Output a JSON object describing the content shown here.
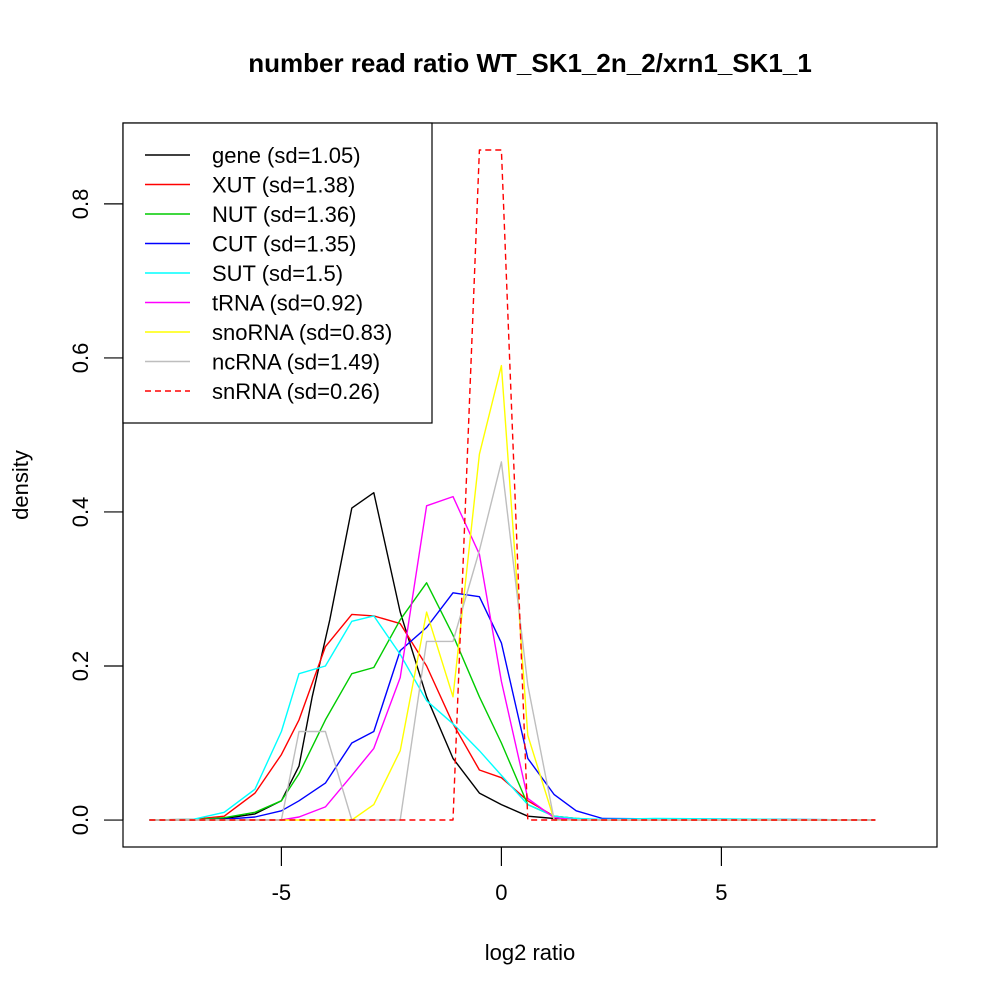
{
  "chart_data": {
    "type": "line",
    "title": "number read ratio WT_SK1_2n_2/xrn1_SK1_1",
    "xlabel": "log2 ratio",
    "ylabel": "density",
    "xlim": [
      -8.6,
      9.9
    ],
    "ylim": [
      -0.035,
      0.905
    ],
    "xticks": [
      -5,
      0,
      5
    ],
    "xtick_labels": [
      "-5",
      "0",
      "5"
    ],
    "yticks": [
      0.0,
      0.2,
      0.4,
      0.6,
      0.8
    ],
    "ytick_labels": [
      "0.0",
      "0.2",
      "0.4",
      "0.6",
      "0.8"
    ],
    "grid": false,
    "legend_position": "top-left",
    "series": [
      {
        "name": "gene (sd=1.05)",
        "color": "#000000",
        "dash": false,
        "x": [
          -8.0,
          -7.0,
          -6.3,
          -5.6,
          -5.0,
          -4.6,
          -4.3,
          -3.9,
          -3.4,
          -2.9,
          -2.3,
          -1.7,
          -1.1,
          -0.5,
          0.0,
          0.6,
          1.2,
          1.7,
          2.3,
          8.5
        ],
        "y": [
          0.0,
          0.0,
          0.002,
          0.008,
          0.025,
          0.07,
          0.16,
          0.26,
          0.405,
          0.425,
          0.27,
          0.16,
          0.08,
          0.035,
          0.02,
          0.005,
          0.002,
          0.0,
          0.0,
          0.0
        ]
      },
      {
        "name": "XUT (sd=1.38)",
        "color": "#ff0000",
        "dash": false,
        "x": [
          -8.0,
          -7.0,
          -6.3,
          -5.6,
          -5.0,
          -4.6,
          -4.0,
          -3.4,
          -2.9,
          -2.3,
          -1.7,
          -1.1,
          -0.5,
          0.0,
          0.6,
          1.2,
          1.7,
          2.3,
          8.5
        ],
        "y": [
          0.0,
          0.001,
          0.005,
          0.035,
          0.085,
          0.13,
          0.225,
          0.267,
          0.265,
          0.255,
          0.2,
          0.125,
          0.065,
          0.055,
          0.025,
          0.005,
          0.002,
          0.0,
          0.0
        ]
      },
      {
        "name": "NUT (sd=1.36)",
        "color": "#00cc00",
        "dash": false,
        "x": [
          -8.0,
          -7.0,
          -6.3,
          -5.6,
          -5.0,
          -4.6,
          -4.0,
          -3.4,
          -2.9,
          -2.3,
          -1.7,
          -1.1,
          -0.5,
          0.0,
          0.6,
          1.2,
          1.7,
          2.3,
          8.5
        ],
        "y": [
          0.0,
          0.0,
          0.003,
          0.01,
          0.025,
          0.06,
          0.13,
          0.19,
          0.198,
          0.26,
          0.308,
          0.24,
          0.16,
          0.1,
          0.02,
          0.005,
          0.002,
          0.0,
          0.0
        ]
      },
      {
        "name": "CUT (sd=1.35)",
        "color": "#0000ff",
        "dash": false,
        "x": [
          -8.0,
          -7.0,
          -6.3,
          -5.6,
          -5.0,
          -4.6,
          -4.0,
          -3.4,
          -2.9,
          -2.3,
          -1.7,
          -1.1,
          -0.5,
          0.0,
          0.6,
          1.2,
          1.7,
          2.3,
          8.5
        ],
        "y": [
          0.0,
          0.0,
          0.001,
          0.004,
          0.012,
          0.025,
          0.048,
          0.1,
          0.115,
          0.22,
          0.25,
          0.295,
          0.29,
          0.23,
          0.08,
          0.033,
          0.012,
          0.002,
          0.0
        ]
      },
      {
        "name": "SUT (sd=1.5)",
        "color": "#00ffff",
        "dash": false,
        "x": [
          -8.0,
          -7.0,
          -6.3,
          -5.6,
          -5.0,
          -4.6,
          -4.0,
          -3.4,
          -2.9,
          -2.3,
          -1.7,
          -1.1,
          -0.5,
          0.0,
          0.6,
          1.2,
          1.7,
          2.3,
          3.5,
          8.5
        ],
        "y": [
          0.0,
          0.001,
          0.01,
          0.04,
          0.115,
          0.19,
          0.2,
          0.258,
          0.265,
          0.215,
          0.155,
          0.125,
          0.09,
          0.058,
          0.02,
          0.005,
          0.002,
          0.001,
          0.002,
          0.0
        ]
      },
      {
        "name": "tRNA (sd=0.92)",
        "color": "#ff00ff",
        "dash": false,
        "x": [
          -8.0,
          -5.0,
          -4.6,
          -4.0,
          -3.4,
          -2.9,
          -2.3,
          -1.7,
          -1.1,
          -0.5,
          0.0,
          0.6,
          1.2,
          1.7,
          8.5
        ],
        "y": [
          0.0,
          0.0,
          0.004,
          0.017,
          0.058,
          0.093,
          0.185,
          0.408,
          0.42,
          0.345,
          0.18,
          0.028,
          0.003,
          0.0,
          0.0
        ]
      },
      {
        "name": "snoRNA (sd=0.83)",
        "color": "#ffff00",
        "dash": false,
        "x": [
          -8.0,
          -3.4,
          -2.9,
          -2.3,
          -1.7,
          -1.1,
          -0.5,
          0.0,
          0.6,
          1.2,
          8.5
        ],
        "y": [
          0.0,
          0.0,
          0.02,
          0.09,
          0.27,
          0.16,
          0.475,
          0.59,
          0.11,
          0.0,
          0.0
        ]
      },
      {
        "name": "ncRNA (sd=1.49)",
        "color": "#bebebe",
        "dash": false,
        "x": [
          -8.0,
          -5.0,
          -4.6,
          -4.0,
          -3.4,
          -2.9,
          -2.3,
          -1.7,
          -1.1,
          -0.5,
          0.0,
          0.6,
          1.2,
          8.5
        ],
        "y": [
          0.0,
          0.0,
          0.115,
          0.115,
          0.0,
          0.0,
          0.0,
          0.232,
          0.232,
          0.35,
          0.465,
          0.175,
          0.0,
          0.0
        ]
      },
      {
        "name": "snRNA (sd=0.26)",
        "color": "#ff0000",
        "dash": true,
        "x": [
          -8.0,
          -1.1,
          -0.5,
          0.0,
          0.6,
          1.2,
          8.5
        ],
        "y": [
          0.0,
          0.0,
          0.87,
          0.87,
          0.0,
          0.0,
          0.0
        ]
      }
    ]
  }
}
